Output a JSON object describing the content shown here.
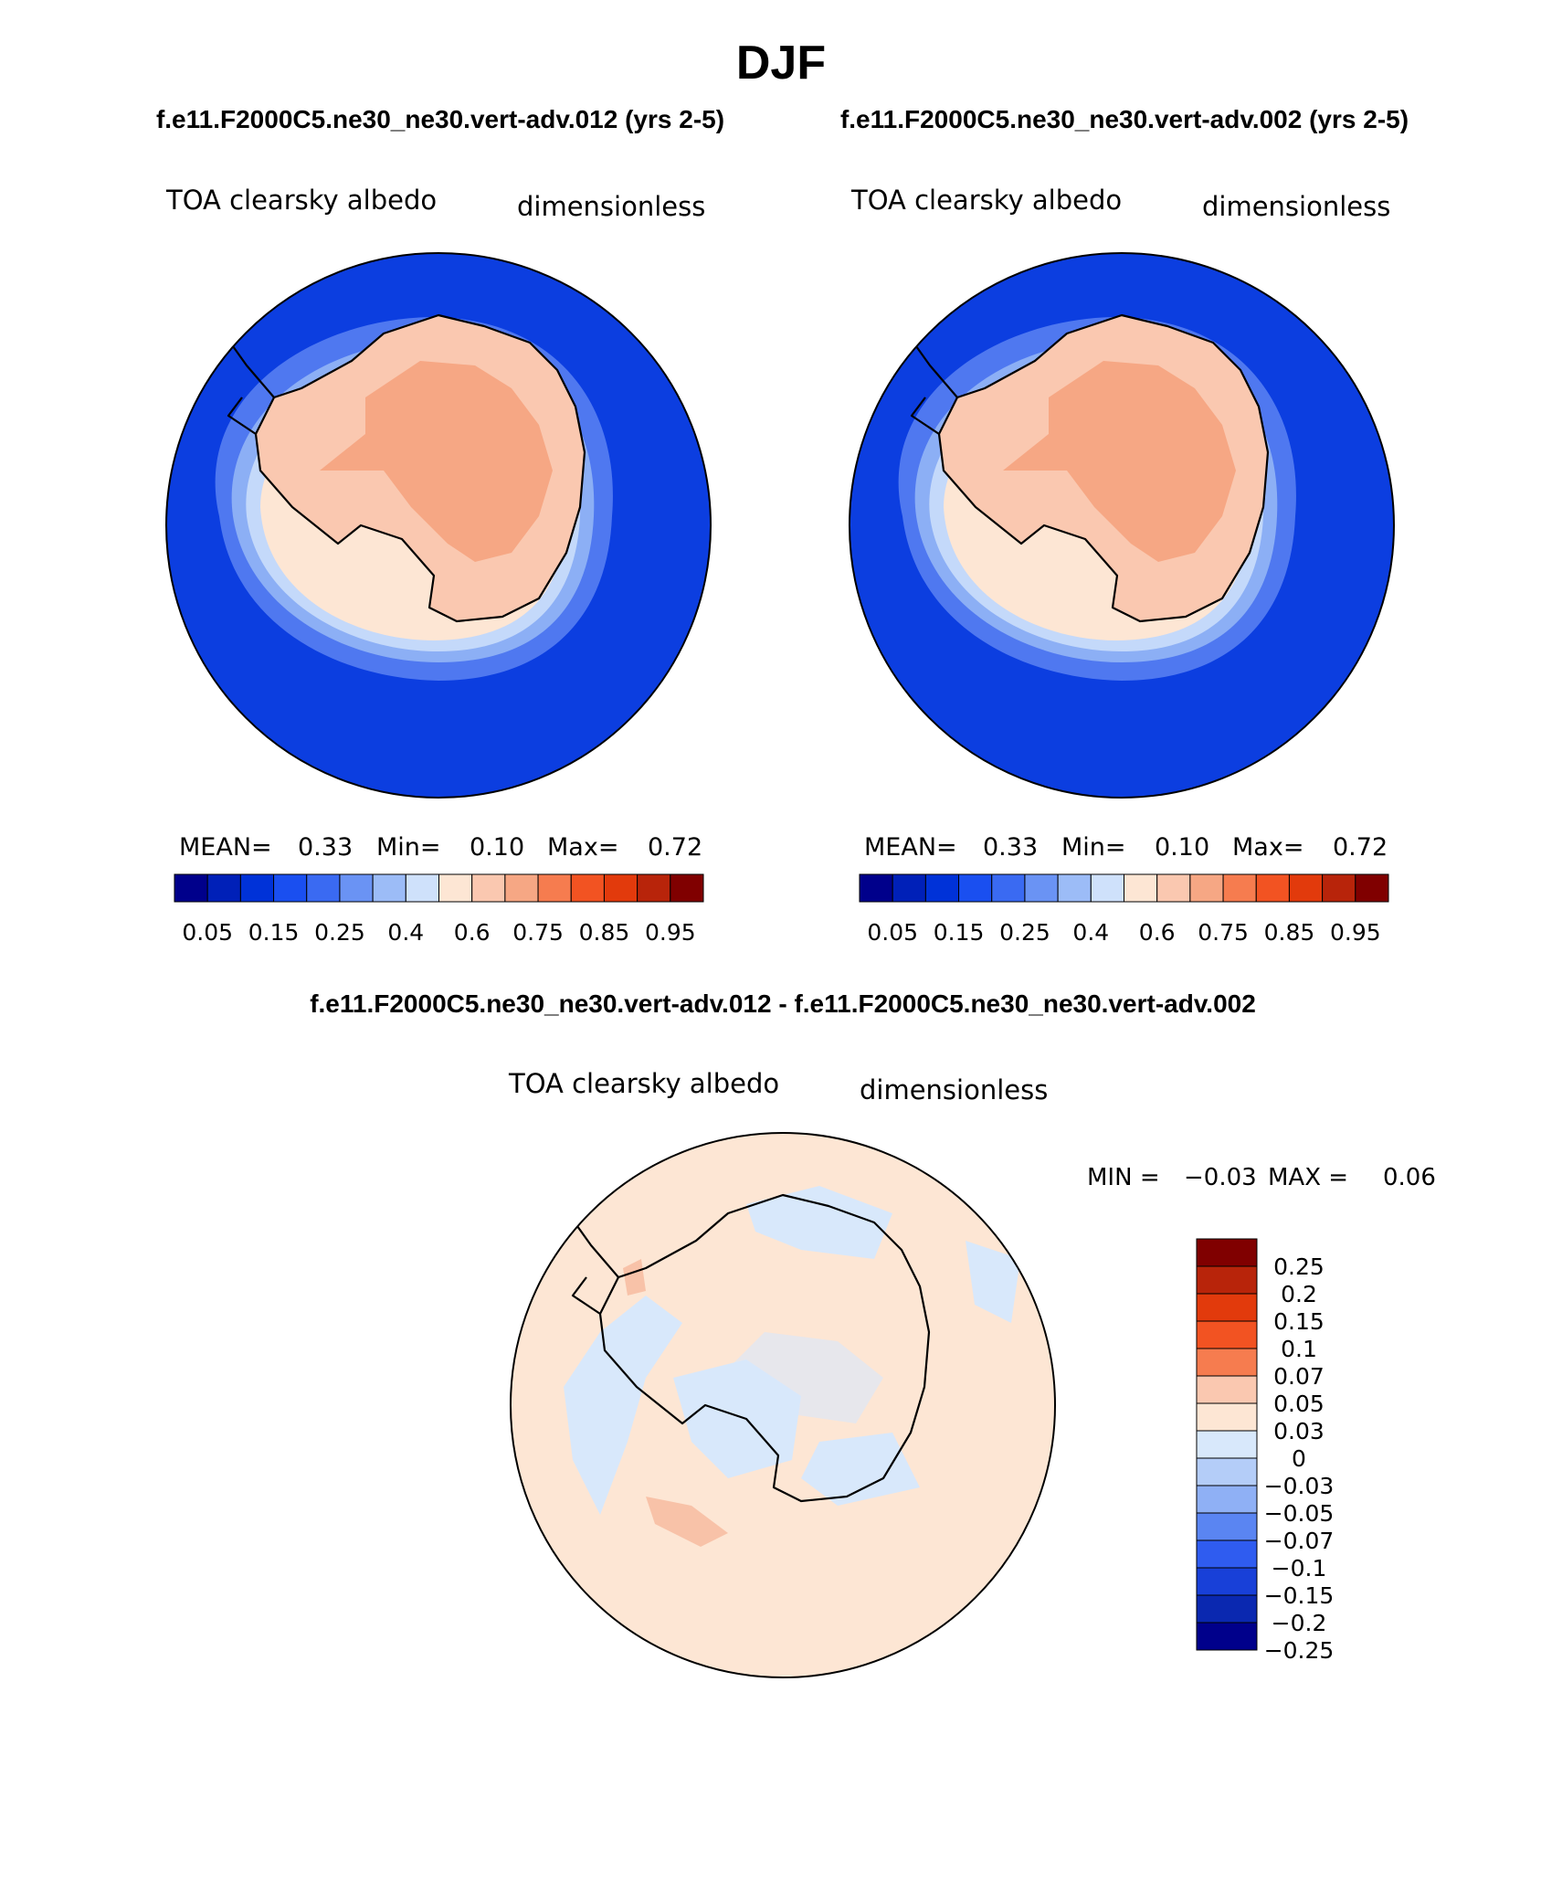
{
  "season": "DJF",
  "colors": {
    "ocean_blue": "#0c3ee0",
    "antarctic_land": "#fac8b0",
    "plateau": "#f6a784",
    "diff_background": "#fde6d4",
    "diff_negative": "#d8e8fb"
  },
  "panels": [
    {
      "case_title": "f.e11.F2000C5.ne30_ne30.vert-adv.012 (yrs 2-5)",
      "variable": "TOA clearsky albedo",
      "units": "dimensionless",
      "stats": {
        "mean_label": "MEAN=",
        "mean": "0.33",
        "min_label": "Min=",
        "min": "0.10",
        "max_label": "Max=",
        "max": "0.72"
      }
    },
    {
      "case_title": "f.e11.F2000C5.ne30_ne30.vert-adv.002 (yrs 2-5)",
      "variable": "TOA clearsky albedo",
      "units": "dimensionless",
      "stats": {
        "mean_label": "MEAN=",
        "mean": "0.33",
        "min_label": "Min=",
        "min": "0.10",
        "max_label": "Max=",
        "max": "0.72"
      }
    }
  ],
  "abs_colorbar": {
    "colors": [
      "#00008b",
      "#0020b8",
      "#0032d8",
      "#1a4ff0",
      "#3a6af2",
      "#6a93f4",
      "#9cbcf7",
      "#cfe1fb",
      "#fde6d4",
      "#fac8b0",
      "#f6a784",
      "#f67c4f",
      "#f25322",
      "#e23a0c",
      "#b8240a",
      "#800000"
    ],
    "tick_labels": [
      "0.05",
      "0.15",
      "0.25",
      "0.4",
      "0.6",
      "0.75",
      "0.85",
      "0.95"
    ]
  },
  "difference": {
    "title": "f.e11.F2000C5.ne30_ne30.vert-adv.012 - f.e11.F2000C5.ne30_ne30.vert-adv.002",
    "variable": "TOA clearsky albedo",
    "units": "dimensionless",
    "min_label": "MIN =",
    "min": "−0.03",
    "max_label": "MAX =",
    "max": "0.06",
    "colorbar": {
      "colors_top_to_bottom": [
        "#800000",
        "#b8240a",
        "#e23a0c",
        "#f25322",
        "#f67c4f",
        "#fac8b0",
        "#fde6d4",
        "#d8e8fb",
        "#b4cdf8",
        "#8fb0f5",
        "#5a85f2",
        "#2f5cf0",
        "#1840d8",
        "#0a28b0",
        "#00008b"
      ],
      "labels": [
        "0.25",
        "0.2",
        "0.15",
        "0.1",
        "0.07",
        "0.05",
        "0.03",
        "0",
        "−0.03",
        "−0.05",
        "−0.07",
        "−0.1",
        "−0.15",
        "−0.2",
        "−0.25"
      ]
    }
  }
}
